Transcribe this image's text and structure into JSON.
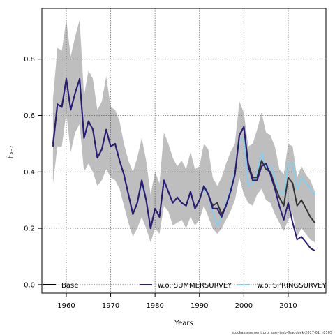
{
  "chart_data": {
    "type": "line",
    "xlabel": "Years",
    "ylabel": "F̄₃₋₇",
    "xlim": [
      1954.5,
      2018.5
    ],
    "ylim": [
      -0.03,
      0.98
    ],
    "xticks": [
      1960,
      1970,
      1980,
      1990,
      2000,
      2010
    ],
    "yticks": [
      0.0,
      0.2,
      0.4,
      0.6,
      0.8
    ],
    "xtick_labels": [
      "1960",
      "1970",
      "1980",
      "1990",
      "2000",
      "2010"
    ],
    "ytick_labels": [
      "0.0",
      "0.2",
      "0.4",
      "0.6",
      "0.8"
    ],
    "grid": true,
    "legend_position": "bottom",
    "legend": [
      {
        "label": "Base",
        "color": "#000000"
      },
      {
        "label": "w.o. SUMMERSURVEY",
        "color": "#2b1a78"
      },
      {
        "label": "w.o. SPRINGSURVEY",
        "color": "#87ceeb"
      }
    ],
    "band": {
      "color": "#bebebe",
      "x": [
        1957,
        1958,
        1959,
        1960,
        1961,
        1962,
        1963,
        1964,
        1965,
        1966,
        1967,
        1968,
        1969,
        1970,
        1971,
        1972,
        1973,
        1974,
        1975,
        1976,
        1977,
        1978,
        1979,
        1980,
        1981,
        1982,
        1983,
        1984,
        1985,
        1986,
        1987,
        1988,
        1989,
        1990,
        1991,
        1992,
        1993,
        1994,
        1995,
        1996,
        1997,
        1998,
        1999,
        2000,
        2001,
        2002,
        2003,
        2004,
        2005,
        2006,
        2007,
        2008,
        2009,
        2010,
        2011,
        2012,
        2013,
        2014,
        2015,
        2016
      ],
      "upper": [
        0.66,
        0.84,
        0.83,
        0.94,
        0.81,
        0.88,
        0.94,
        0.67,
        0.76,
        0.73,
        0.62,
        0.65,
        0.74,
        0.63,
        0.62,
        0.58,
        0.5,
        0.44,
        0.4,
        0.45,
        0.52,
        0.44,
        0.32,
        0.4,
        0.36,
        0.54,
        0.5,
        0.45,
        0.42,
        0.44,
        0.41,
        0.47,
        0.41,
        0.42,
        0.5,
        0.48,
        0.38,
        0.35,
        0.38,
        0.43,
        0.47,
        0.5,
        0.65,
        0.61,
        0.49,
        0.5,
        0.55,
        0.61,
        0.54,
        0.53,
        0.49,
        0.41,
        0.39,
        0.5,
        0.49,
        0.38,
        0.42,
        0.39,
        0.37,
        0.33
      ],
      "lower": [
        0.36,
        0.49,
        0.49,
        0.61,
        0.47,
        0.54,
        0.57,
        0.4,
        0.43,
        0.4,
        0.35,
        0.37,
        0.41,
        0.38,
        0.37,
        0.34,
        0.28,
        0.22,
        0.17,
        0.2,
        0.24,
        0.2,
        0.15,
        0.2,
        0.18,
        0.28,
        0.26,
        0.21,
        0.22,
        0.23,
        0.2,
        0.24,
        0.21,
        0.23,
        0.28,
        0.24,
        0.2,
        0.18,
        0.2,
        0.23,
        0.26,
        0.3,
        0.38,
        0.32,
        0.29,
        0.28,
        0.32,
        0.34,
        0.3,
        0.29,
        0.25,
        0.22,
        0.19,
        0.23,
        0.25,
        0.17,
        0.2,
        0.18,
        0.16,
        0.15
      ]
    },
    "series": [
      {
        "name": "w.o. SPRINGSURVEY",
        "color": "#87ceeb",
        "x": [
          1957,
          1958,
          1959,
          1960,
          1961,
          1962,
          1963,
          1964,
          1965,
          1966,
          1967,
          1968,
          1969,
          1970,
          1971,
          1972,
          1973,
          1974,
          1975,
          1976,
          1977,
          1978,
          1979,
          1980,
          1981,
          1982,
          1983,
          1984,
          1985,
          1986,
          1987,
          1988,
          1989,
          1990,
          1991,
          1992,
          1993,
          1994,
          1995,
          1996,
          1997,
          1998,
          1999,
          2000,
          2001,
          2002,
          2003,
          2004,
          2005,
          2006,
          2007,
          2008,
          2009,
          2010,
          2011,
          2012,
          2013,
          2014,
          2015,
          2016
        ],
        "y": [
          0.5,
          0.64,
          0.63,
          0.73,
          0.62,
          0.68,
          0.72,
          0.52,
          0.58,
          0.55,
          0.45,
          0.48,
          0.55,
          0.49,
          0.5,
          0.44,
          0.39,
          0.32,
          0.25,
          0.29,
          0.36,
          0.3,
          0.2,
          0.27,
          0.24,
          0.37,
          0.33,
          0.29,
          0.31,
          0.29,
          0.28,
          0.33,
          0.27,
          0.3,
          0.34,
          0.32,
          0.26,
          0.21,
          0.24,
          0.29,
          0.34,
          0.4,
          0.51,
          0.52,
          0.35,
          0.36,
          0.4,
          0.47,
          0.41,
          0.42,
          0.38,
          0.33,
          0.32,
          0.43,
          0.43,
          0.34,
          0.38,
          0.36,
          0.34,
          0.32
        ]
      },
      {
        "name": "Base",
        "color": "#333333",
        "x": [
          1957,
          1958,
          1959,
          1960,
          1961,
          1962,
          1963,
          1964,
          1965,
          1966,
          1967,
          1968,
          1969,
          1970,
          1971,
          1972,
          1973,
          1974,
          1975,
          1976,
          1977,
          1978,
          1979,
          1980,
          1981,
          1982,
          1983,
          1984,
          1985,
          1986,
          1987,
          1988,
          1989,
          1990,
          1991,
          1992,
          1993,
          1994,
          1995,
          1996,
          1997,
          1998,
          1999,
          2000,
          2001,
          2002,
          2003,
          2004,
          2005,
          2006,
          2007,
          2008,
          2009,
          2010,
          2011,
          2012,
          2013,
          2014,
          2015,
          2016
        ],
        "y": [
          0.5,
          0.64,
          0.63,
          0.73,
          0.62,
          0.68,
          0.73,
          0.52,
          0.58,
          0.55,
          0.45,
          0.48,
          0.55,
          0.49,
          0.5,
          0.44,
          0.39,
          0.32,
          0.25,
          0.29,
          0.37,
          0.3,
          0.2,
          0.27,
          0.24,
          0.37,
          0.33,
          0.29,
          0.31,
          0.29,
          0.28,
          0.33,
          0.27,
          0.3,
          0.35,
          0.32,
          0.28,
          0.29,
          0.25,
          0.28,
          0.33,
          0.39,
          0.53,
          0.56,
          0.43,
          0.38,
          0.38,
          0.44,
          0.41,
          0.4,
          0.35,
          0.31,
          0.28,
          0.38,
          0.36,
          0.28,
          0.3,
          0.27,
          0.24,
          0.22
        ]
      },
      {
        "name": "w.o. SUMMERSURVEY",
        "color": "#2b1a78",
        "x": [
          1957,
          1958,
          1959,
          1960,
          1961,
          1962,
          1963,
          1964,
          1965,
          1966,
          1967,
          1968,
          1969,
          1970,
          1971,
          1972,
          1973,
          1974,
          1975,
          1976,
          1977,
          1978,
          1979,
          1980,
          1981,
          1982,
          1983,
          1984,
          1985,
          1986,
          1987,
          1988,
          1989,
          1990,
          1991,
          1992,
          1993,
          1994,
          1995,
          1996,
          1997,
          1998,
          1999,
          2000,
          2001,
          2002,
          2003,
          2004,
          2005,
          2006,
          2007,
          2008,
          2009,
          2010,
          2011,
          2012,
          2013,
          2014,
          2015,
          2016
        ],
        "y": [
          0.49,
          0.64,
          0.63,
          0.73,
          0.62,
          0.68,
          0.73,
          0.52,
          0.58,
          0.55,
          0.45,
          0.48,
          0.55,
          0.49,
          0.5,
          0.44,
          0.39,
          0.32,
          0.25,
          0.29,
          0.37,
          0.3,
          0.2,
          0.27,
          0.24,
          0.37,
          0.33,
          0.29,
          0.31,
          0.29,
          0.28,
          0.33,
          0.27,
          0.3,
          0.35,
          0.32,
          0.27,
          0.27,
          0.24,
          0.28,
          0.33,
          0.39,
          0.53,
          0.56,
          0.42,
          0.37,
          0.37,
          0.42,
          0.43,
          0.39,
          0.34,
          0.28,
          0.23,
          0.29,
          0.22,
          0.16,
          0.17,
          0.15,
          0.13,
          0.12
        ]
      }
    ]
  },
  "caption": "stockassessment.org, sam-tmb-fhaddock-2017-01, r8505"
}
